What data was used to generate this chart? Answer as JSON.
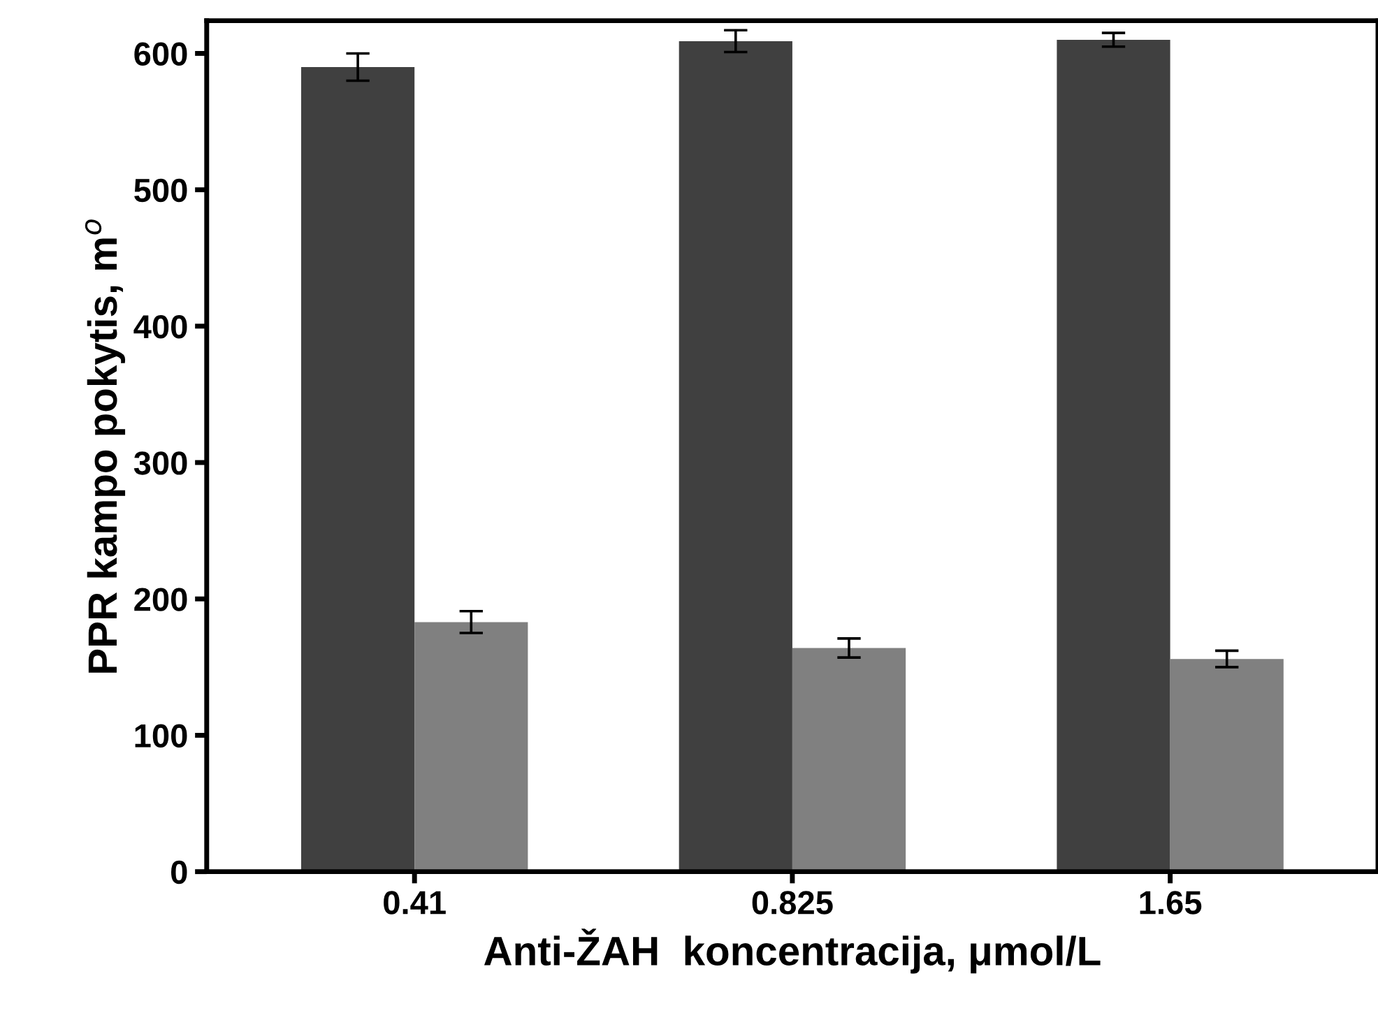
{
  "chart_data": {
    "type": "bar",
    "xlabel": "Anti-ŽAH  koncentracija, μmol/L",
    "ylabel": "PPR kampo pokytis, m$^{o}$",
    "categories": [
      "0.41",
      "0.825",
      "1.65"
    ],
    "series": [
      {
        "color": "#404040",
        "values": [
          590,
          609,
          610
        ],
        "errors": [
          10,
          8,
          5
        ]
      },
      {
        "color": "#808080",
        "values": [
          183,
          164,
          156
        ],
        "errors": [
          8,
          7,
          6
        ]
      }
    ],
    "ylim": [
      0,
      624
    ],
    "yticks": [
      0,
      100,
      200,
      300,
      400,
      500,
      600
    ],
    "grid": false,
    "legend": false
  }
}
